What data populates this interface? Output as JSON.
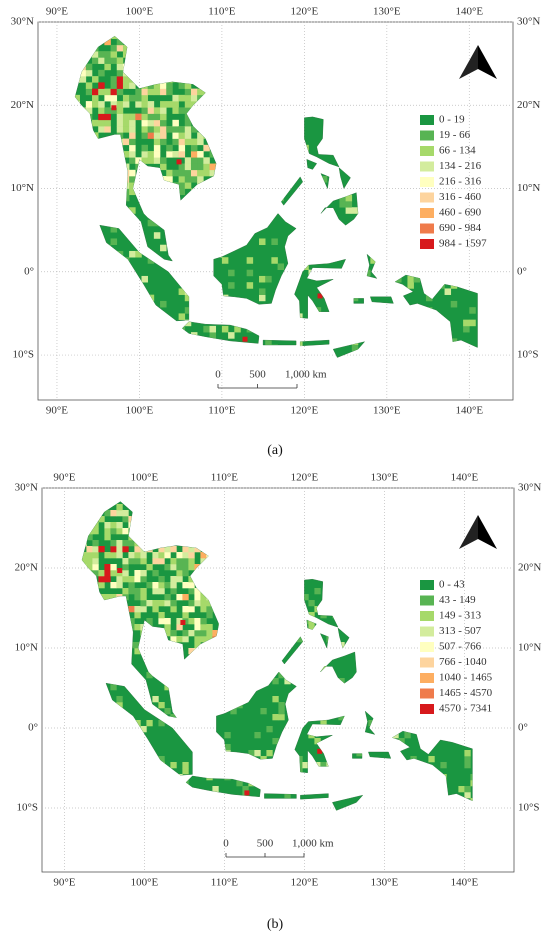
{
  "panels": [
    {
      "caption": "(a)",
      "lon_ticks": [
        {
          "value": 90,
          "label": "90°E"
        },
        {
          "value": 100,
          "label": "100°E"
        },
        {
          "value": 110,
          "label": "110°E"
        },
        {
          "value": 120,
          "label": "120°E"
        },
        {
          "value": 130,
          "label": "130°E"
        },
        {
          "value": 140,
          "label": "140°E"
        }
      ],
      "lat_ticks": [
        {
          "value": 30,
          "label": "30°N"
        },
        {
          "value": 20,
          "label": "20°N"
        },
        {
          "value": 10,
          "label": "10°N"
        },
        {
          "value": 0,
          "label": "0°"
        },
        {
          "value": -10,
          "label": "10°S"
        }
      ],
      "legend": [
        {
          "label": "0 - 19",
          "color": "#1a9641"
        },
        {
          "label": "19 - 66",
          "color": "#58b453"
        },
        {
          "label": "66 - 134",
          "color": "#a6d96a"
        },
        {
          "label": "134 - 216",
          "color": "#d3ec9d"
        },
        {
          "label": "216 - 316",
          "color": "#ffffc0"
        },
        {
          "label": "316 - 460",
          "color": "#fdd49e"
        },
        {
          "label": "460 - 690",
          "color": "#fdae61"
        },
        {
          "label": "690 - 984",
          "color": "#ef7b4b"
        },
        {
          "label": "984 - 1597",
          "color": "#d7191c"
        }
      ],
      "scale_bar": [
        "0",
        "500",
        "1,000 km"
      ]
    },
    {
      "caption": "(b)",
      "lon_ticks": [
        {
          "value": 90,
          "label": "90°E"
        },
        {
          "value": 100,
          "label": "100°E"
        },
        {
          "value": 110,
          "label": "110°E"
        },
        {
          "value": 120,
          "label": "120°E"
        },
        {
          "value": 130,
          "label": "130°E"
        },
        {
          "value": 140,
          "label": "140°E"
        }
      ],
      "lat_ticks": [
        {
          "value": 30,
          "label": "30°N"
        },
        {
          "value": 20,
          "label": "20°N"
        },
        {
          "value": 10,
          "label": "10°N"
        },
        {
          "value": 0,
          "label": "0°"
        },
        {
          "value": -10,
          "label": "10°S"
        }
      ],
      "legend": [
        {
          "label": "0 - 43",
          "color": "#1a9641"
        },
        {
          "label": "43 - 149",
          "color": "#58b453"
        },
        {
          "label": "149 - 313",
          "color": "#a6d96a"
        },
        {
          "label": "313 - 507",
          "color": "#d3ec9d"
        },
        {
          "label": "507 - 766",
          "color": "#ffffc0"
        },
        {
          "label": "766 - 1040",
          "color": "#fdd49e"
        },
        {
          "label": "1040 - 1465",
          "color": "#fdae61"
        },
        {
          "label": "1465 - 4570",
          "color": "#ef7b4b"
        },
        {
          "label": "4570 - 7341",
          "color": "#d7191c"
        }
      ],
      "scale_bar": [
        "0",
        "500",
        "1,000 km"
      ]
    }
  ]
}
